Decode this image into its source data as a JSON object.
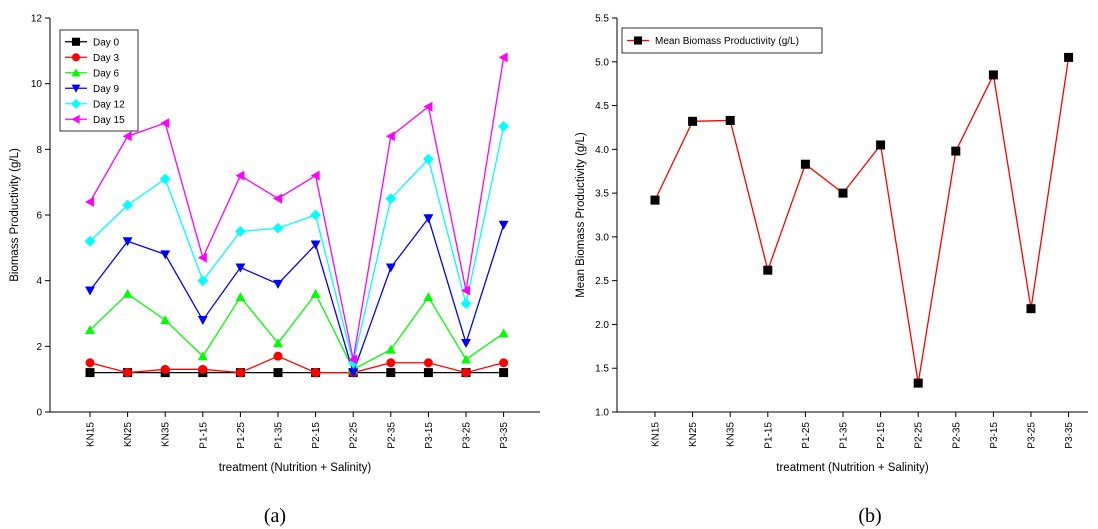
{
  "panels": [
    {
      "caption": "(a)"
    },
    {
      "caption": "(b)"
    }
  ],
  "chart_data": [
    {
      "type": "line",
      "xlabel": "treatment (Nutrition + Salinity)",
      "ylabel": "Biomass Productivity (g/L)",
      "ylim": [
        0,
        12
      ],
      "yticks": [
        0,
        2,
        4,
        6,
        8,
        10,
        12
      ],
      "legend_position": "top-left",
      "categories": [
        "KN15",
        "KN25",
        "KN35",
        "P1-15",
        "P1-25",
        "P1-35",
        "P2-15",
        "P2-25",
        "P2-35",
        "P3-15",
        "P3-25",
        "P3-35"
      ],
      "series": [
        {
          "name": "Day 0",
          "color": "#000000",
          "marker": "square",
          "values": [
            1.2,
            1.2,
            1.2,
            1.2,
            1.2,
            1.2,
            1.2,
            1.2,
            1.2,
            1.2,
            1.2,
            1.2
          ]
        },
        {
          "name": "Day 3",
          "color": "#ff0000",
          "marker": "circle",
          "values": [
            1.5,
            1.2,
            1.3,
            1.3,
            1.2,
            1.7,
            1.2,
            1.2,
            1.5,
            1.5,
            1.2,
            1.5
          ]
        },
        {
          "name": "Day 6",
          "color": "#00ff00",
          "marker": "triangle-up",
          "values": [
            2.5,
            3.6,
            2.8,
            1.7,
            3.5,
            2.1,
            3.6,
            1.3,
            1.9,
            3.5,
            1.6,
            2.4
          ]
        },
        {
          "name": "Day 9",
          "color": "#0000ff",
          "marker": "triangle-down",
          "values": [
            3.7,
            5.2,
            4.8,
            2.8,
            4.4,
            3.9,
            5.1,
            1.2,
            4.4,
            5.9,
            2.1,
            5.7
          ]
        },
        {
          "name": "Day 12",
          "color": "#00ffff",
          "marker": "diamond",
          "values": [
            5.2,
            6.3,
            7.1,
            4.0,
            5.5,
            5.6,
            6.0,
            1.5,
            6.5,
            7.7,
            3.3,
            8.7
          ]
        },
        {
          "name": "Day 15",
          "color": "#ff00ff",
          "marker": "triangle-left",
          "values": [
            6.4,
            8.4,
            8.8,
            4.7,
            7.2,
            6.5,
            7.2,
            1.6,
            8.4,
            9.3,
            3.7,
            10.8
          ]
        }
      ]
    },
    {
      "type": "line",
      "xlabel": "treatment (Nutrition + Salinity)",
      "ylabel": "Mean Biomass Productivity (g/L)",
      "ylim": [
        1.0,
        5.5
      ],
      "yticks": [
        "1.0",
        "1.5",
        "2.0",
        "2.5",
        "3.0",
        "3.5",
        "4.0",
        "4.5",
        "5.0",
        "5.5"
      ],
      "legend_position": "top-left",
      "categories": [
        "KN15",
        "KN25",
        "KN35",
        "P1-15",
        "P1-25",
        "P1-35",
        "P2-15",
        "P2-25",
        "P2-35",
        "P3-15",
        "P3-25",
        "P3-35"
      ],
      "series": [
        {
          "name": "Mean Biomass Productivity (g/L)",
          "color": "#ff0000",
          "marker_color": "#000000",
          "marker": "square",
          "values": [
            3.42,
            4.32,
            4.33,
            2.62,
            3.83,
            3.5,
            4.05,
            1.33,
            3.98,
            4.85,
            2.18,
            5.05
          ]
        }
      ]
    }
  ]
}
